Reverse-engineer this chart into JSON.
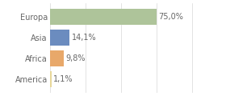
{
  "categories": [
    "America",
    "Africa",
    "Asia",
    "Europa"
  ],
  "values": [
    1.1,
    9.8,
    14.1,
    75.0
  ],
  "bar_colors": [
    "#e8d89a",
    "#e8a86a",
    "#6b8cbf",
    "#aec49a"
  ],
  "labels": [
    "1,1%",
    "9,8%",
    "14,1%",
    "75,0%"
  ],
  "xlim": [
    0,
    105
  ],
  "background_color": "#ffffff",
  "bar_height": 0.75,
  "label_fontsize": 7.0,
  "tick_fontsize": 7.0,
  "grid_color": "#d8d8d8",
  "label_color": "#666666",
  "tick_color": "#666666"
}
